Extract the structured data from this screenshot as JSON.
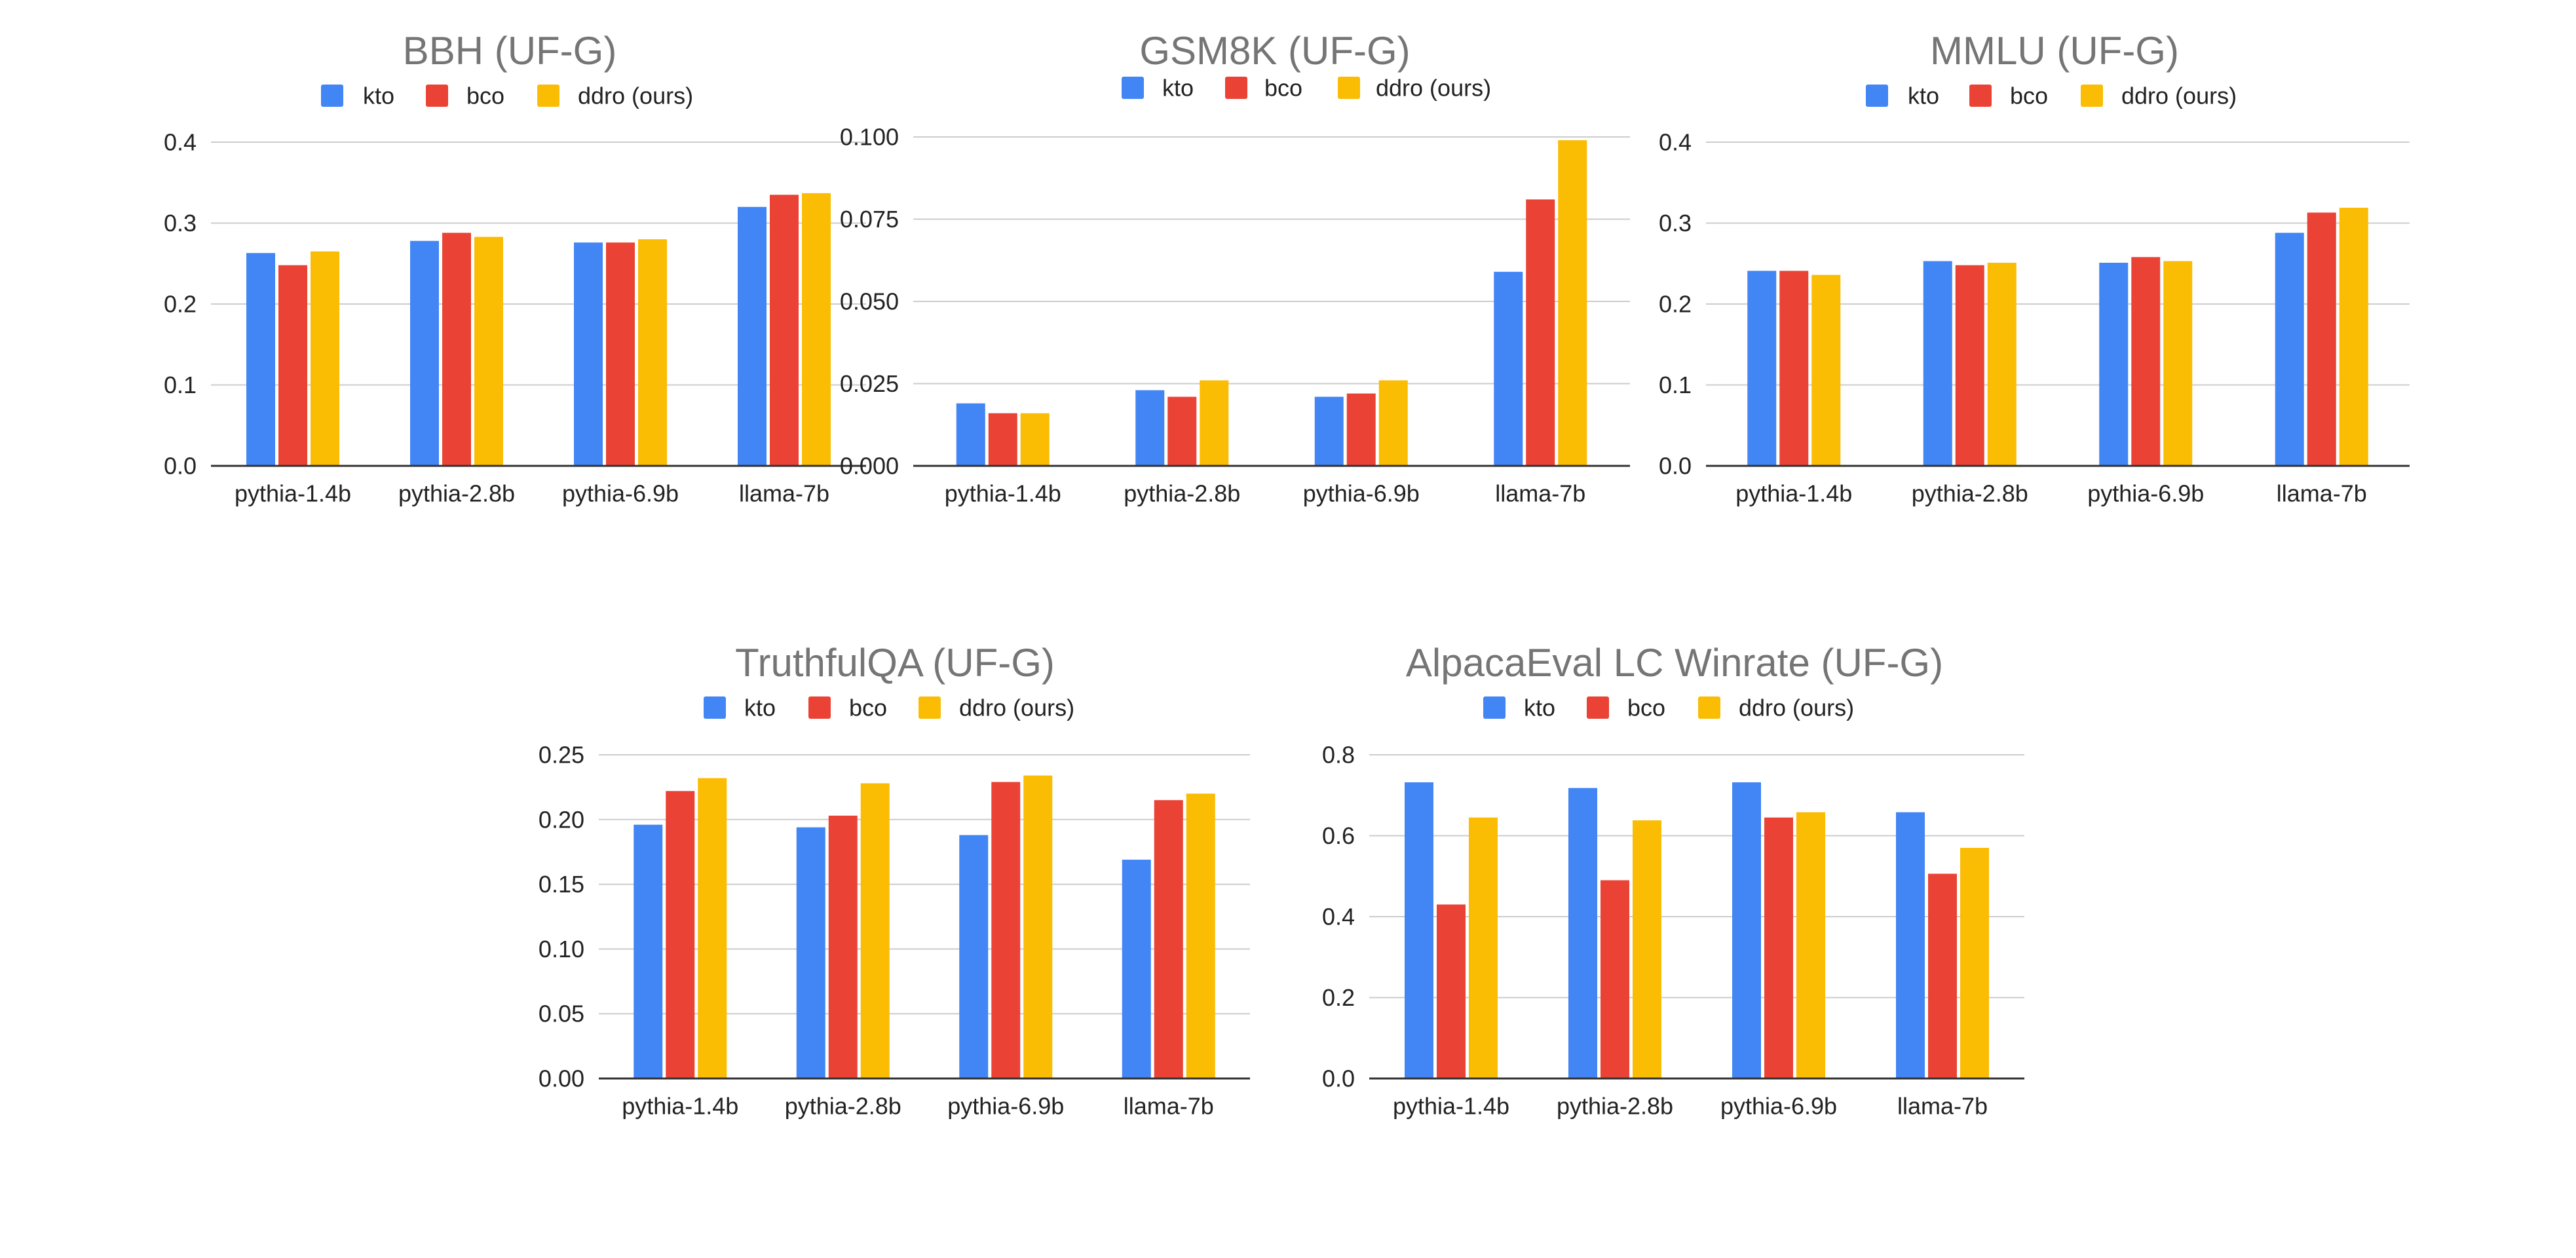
{
  "colors": {
    "kto": "#4285F4",
    "bco": "#EA4335",
    "ddro": "#FBBC04",
    "title": "#757575",
    "grid": "#CCCCCC",
    "axis": "#333333"
  },
  "chart_data": [
    {
      "type": "bar",
      "title": "BBH (UF-G)",
      "categories": [
        "pythia-1.4b",
        "pythia-2.8b",
        "pythia-6.9b",
        "llama-7b"
      ],
      "series": [
        {
          "name": "kto",
          "values": [
            0.263,
            0.278,
            0.276,
            0.32
          ]
        },
        {
          "name": "bco",
          "values": [
            0.248,
            0.288,
            0.276,
            0.335
          ]
        },
        {
          "name": "ddro (ours)",
          "values": [
            0.265,
            0.283,
            0.28,
            0.337
          ]
        }
      ],
      "ylim": [
        0,
        0.4
      ],
      "yticks": [
        0,
        0.1,
        0.2,
        0.3,
        0.4
      ],
      "yticklabels": [
        "0.0",
        "0.1",
        "0.2",
        "0.3",
        "0.4"
      ],
      "xlabel": "",
      "ylabel": "",
      "legend": "top",
      "grid": true
    },
    {
      "type": "bar",
      "title": "GSM8K (UF-G)",
      "categories": [
        "pythia-1.4b",
        "pythia-2.8b",
        "pythia-6.9b",
        "llama-7b"
      ],
      "series": [
        {
          "name": "kto",
          "values": [
            0.019,
            0.023,
            0.021,
            0.059
          ]
        },
        {
          "name": "bco",
          "values": [
            0.016,
            0.021,
            0.022,
            0.081
          ]
        },
        {
          "name": "ddro (ours)",
          "values": [
            0.016,
            0.026,
            0.026,
            0.099
          ]
        }
      ],
      "ylim": [
        0,
        0.1
      ],
      "yticks": [
        0,
        0.025,
        0.05,
        0.075,
        0.1
      ],
      "yticklabels": [
        "0.000",
        "0.025",
        "0.050",
        "0.075",
        "0.100"
      ],
      "xlabel": "",
      "ylabel": "",
      "legend": "top",
      "grid": true
    },
    {
      "type": "bar",
      "title": "MMLU (UF-G)",
      "categories": [
        "pythia-1.4b",
        "pythia-2.8b",
        "pythia-6.9b",
        "llama-7b"
      ],
      "series": [
        {
          "name": "kto",
          "values": [
            0.241,
            0.253,
            0.251,
            0.288
          ]
        },
        {
          "name": "bco",
          "values": [
            0.241,
            0.248,
            0.258,
            0.313
          ]
        },
        {
          "name": "ddro (ours)",
          "values": [
            0.236,
            0.251,
            0.253,
            0.319
          ]
        }
      ],
      "ylim": [
        0,
        0.4
      ],
      "yticks": [
        0,
        0.1,
        0.2,
        0.3,
        0.4
      ],
      "yticklabels": [
        "0.0",
        "0.1",
        "0.2",
        "0.3",
        "0.4"
      ],
      "xlabel": "",
      "ylabel": "",
      "legend": "top",
      "grid": true
    },
    {
      "type": "bar",
      "title": "TruthfulQA (UF-G)",
      "categories": [
        "pythia-1.4b",
        "pythia-2.8b",
        "pythia-6.9b",
        "llama-7b"
      ],
      "series": [
        {
          "name": "kto",
          "values": [
            0.196,
            0.194,
            0.188,
            0.169
          ]
        },
        {
          "name": "bco",
          "values": [
            0.222,
            0.203,
            0.229,
            0.215
          ]
        },
        {
          "name": "ddro (ours)",
          "values": [
            0.232,
            0.228,
            0.234,
            0.22
          ]
        }
      ],
      "ylim": [
        0,
        0.25
      ],
      "yticks": [
        0,
        0.05,
        0.1,
        0.15,
        0.2,
        0.25
      ],
      "yticklabels": [
        "0.00",
        "0.05",
        "0.10",
        "0.15",
        "0.20",
        "0.25"
      ],
      "xlabel": "",
      "ylabel": "",
      "legend": "top",
      "grid": true
    },
    {
      "type": "bar",
      "title": "AlpacaEval LC Winrate (UF-G)",
      "categories": [
        "pythia-1.4b",
        "pythia-2.8b",
        "pythia-6.9b",
        "llama-7b"
      ],
      "series": [
        {
          "name": "kto",
          "values": [
            0.732,
            0.718,
            0.732,
            0.658
          ]
        },
        {
          "name": "bco",
          "values": [
            0.43,
            0.49,
            0.645,
            0.506
          ]
        },
        {
          "name": "ddro (ours)",
          "values": [
            0.645,
            0.638,
            0.658,
            0.57
          ]
        }
      ],
      "ylim": [
        0,
        0.8
      ],
      "yticks": [
        0,
        0.2,
        0.4,
        0.6,
        0.8
      ],
      "yticklabels": [
        "0.0",
        "0.2",
        "0.4",
        "0.6",
        "0.8"
      ],
      "xlabel": "",
      "ylabel": "",
      "legend": "top",
      "grid": true
    }
  ]
}
